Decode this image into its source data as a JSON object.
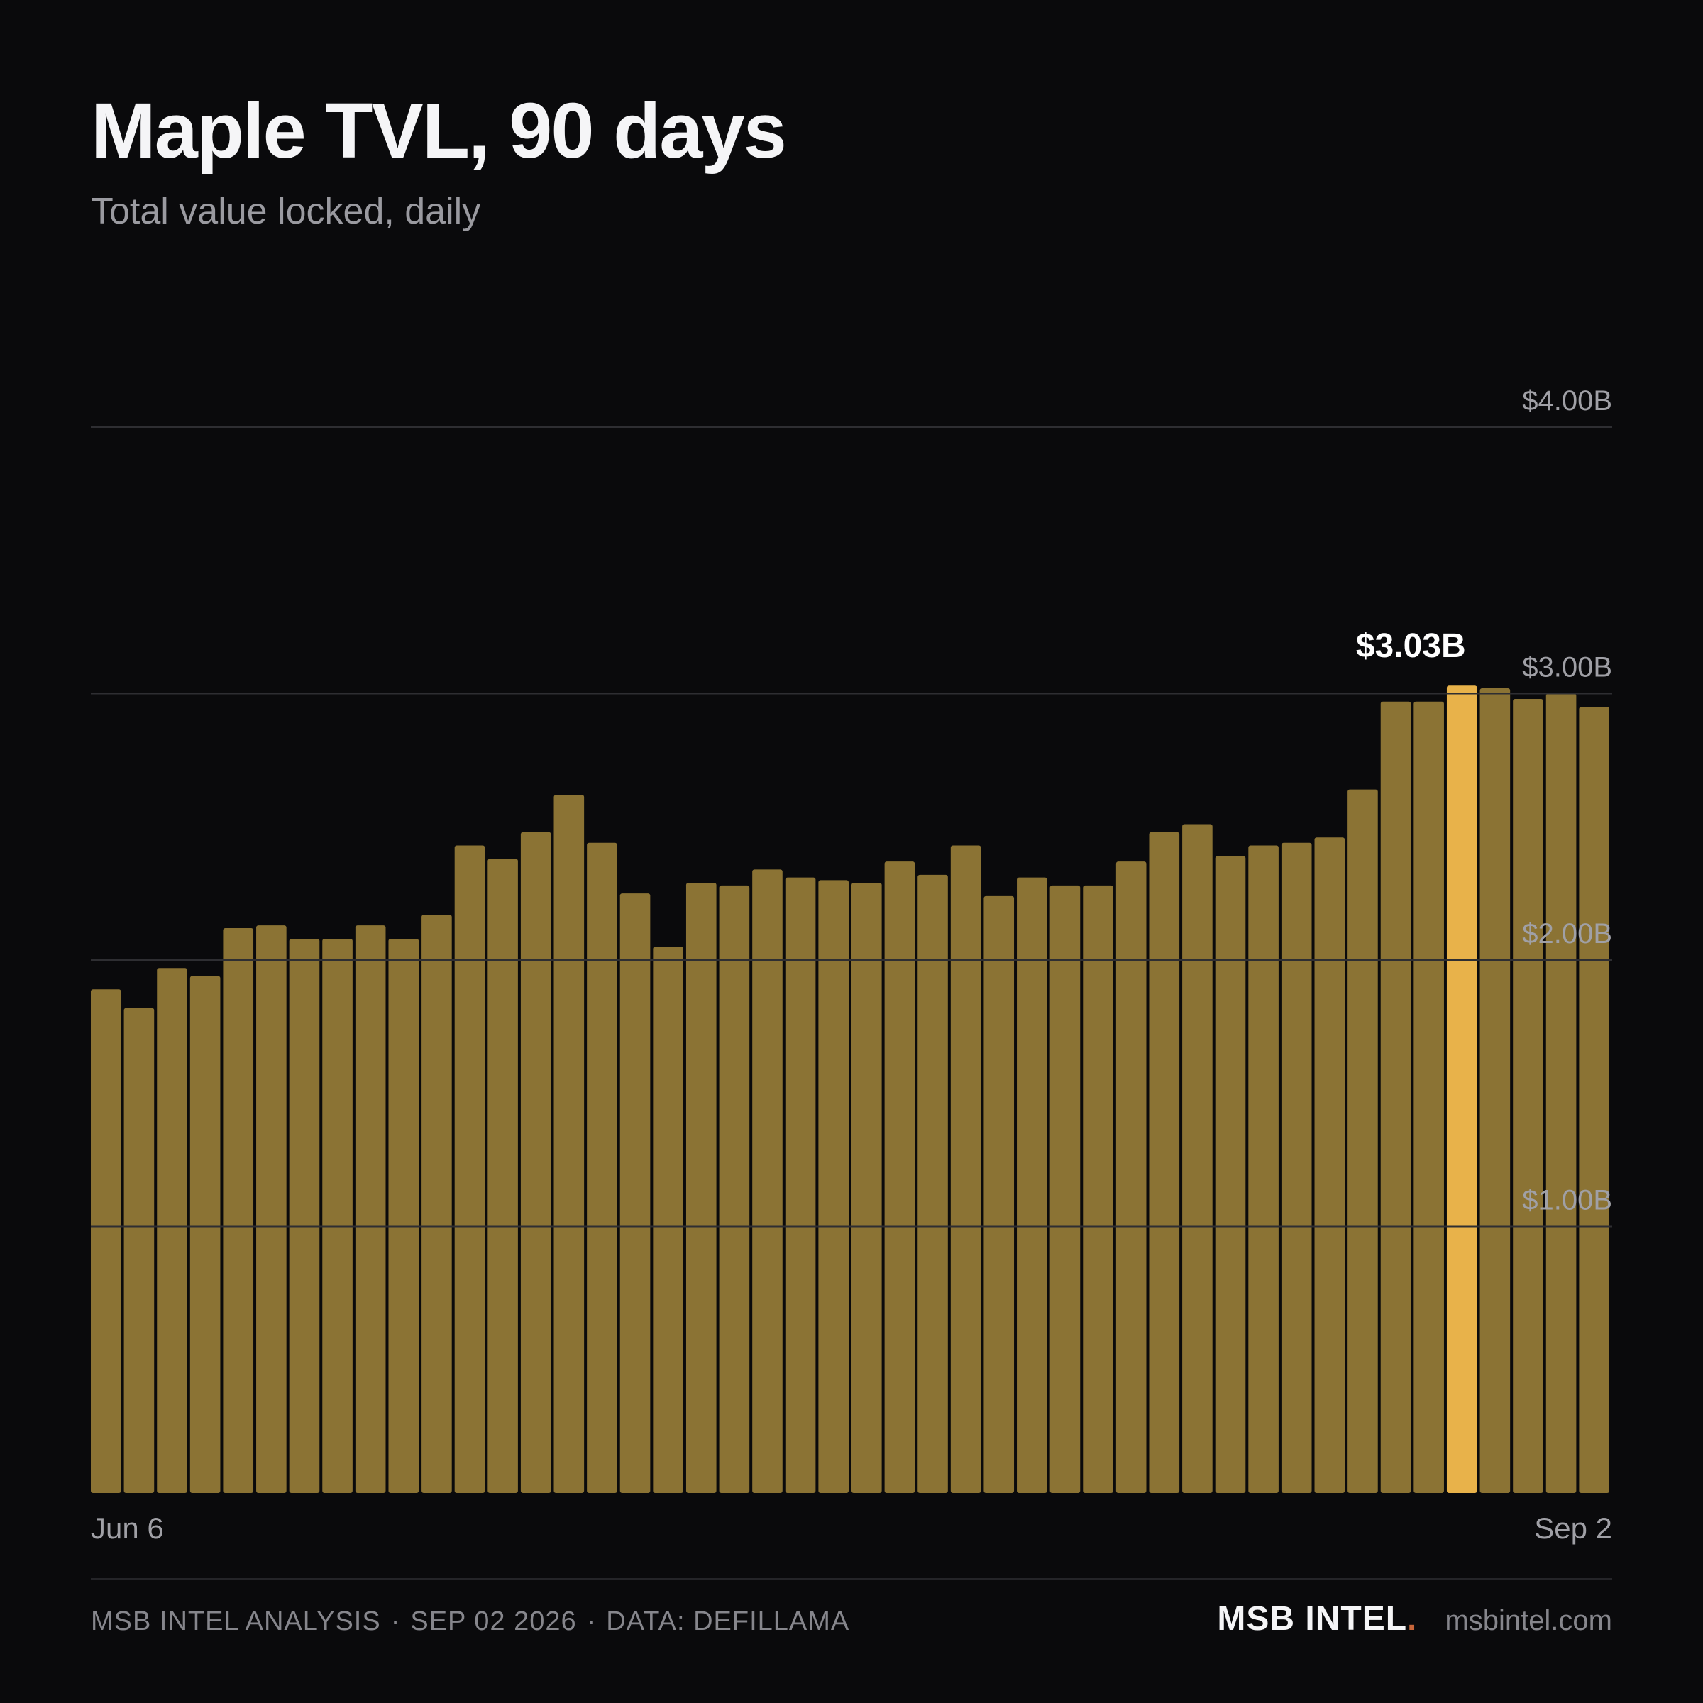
{
  "header": {
    "title": "Maple TVL, 90 days",
    "subtitle": "Total value locked, daily"
  },
  "colors": {
    "background": "#0a0a0c",
    "bar": "#8b7334",
    "highlight_bar": "#e8b24a",
    "gridline": "#2e2e32",
    "tick_label": "#a0a0a6",
    "callout": "#ffffff",
    "brand_dot": "#c8663a"
  },
  "chart_data": {
    "type": "bar",
    "title": "Maple TVL, 90 days",
    "subtitle": "Total value locked, daily",
    "xlabel": "",
    "ylabel": "",
    "unit": "USD billions",
    "x_start_label": "Jun 6",
    "x_end_label": "Sep 2",
    "ylim": [
      0,
      4
    ],
    "yticks": [
      1,
      2,
      3,
      4
    ],
    "ytick_labels": [
      "$1.00B",
      "$2.00B",
      "$3.00B",
      "$4.00B"
    ],
    "grid": true,
    "legend": "none",
    "values": [
      1.89,
      1.82,
      1.97,
      1.94,
      2.12,
      2.13,
      2.08,
      2.08,
      2.13,
      2.08,
      2.17,
      2.43,
      2.38,
      2.48,
      2.62,
      2.44,
      2.25,
      2.05,
      2.29,
      2.28,
      2.34,
      2.31,
      2.3,
      2.29,
      2.37,
      2.32,
      2.43,
      2.24,
      2.31,
      2.28,
      2.28,
      2.37,
      2.48,
      2.51,
      2.39,
      2.43,
      2.44,
      2.46,
      2.64,
      2.97,
      2.97,
      3.03,
      3.02,
      2.98,
      3.0,
      2.95
    ],
    "highlight_index": 41,
    "highlight_label": "$3.03B"
  },
  "footer": {
    "source_parts": [
      "MSB INTEL ANALYSIS",
      "SEP 02 2026",
      "DATA: DEFILLAMA"
    ],
    "separator": "·",
    "brand": "MSB INTEL",
    "brand_dot": ".",
    "site": "msbintel.com"
  }
}
